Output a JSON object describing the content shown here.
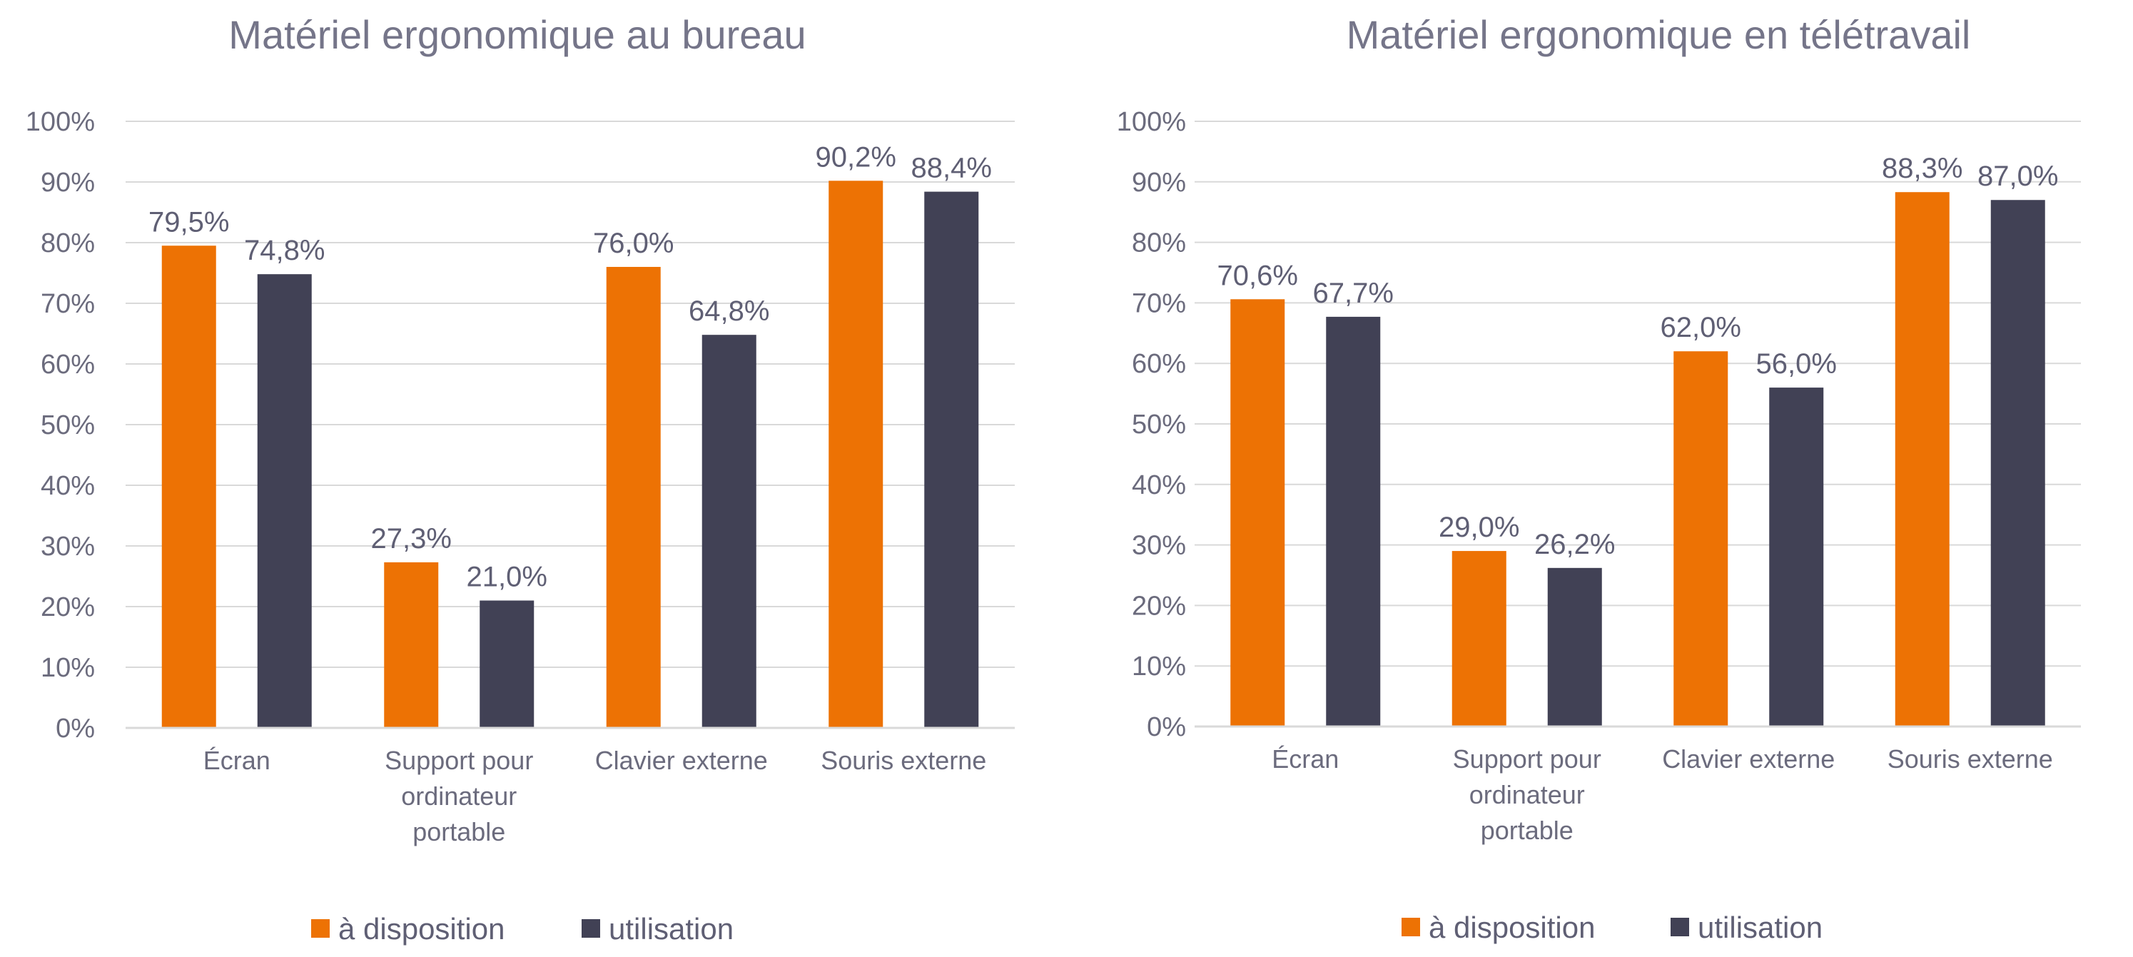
{
  "chart_data": [
    {
      "type": "bar",
      "title": "Matériel ergonomique au bureau",
      "categories": [
        [
          "Écran"
        ],
        [
          "Support pour",
          "ordinateur",
          "portable"
        ],
        [
          "Clavier externe"
        ],
        [
          "Souris externe"
        ]
      ],
      "series": [
        {
          "name": "à disposition",
          "color": "#ED7204",
          "values": [
            79.5,
            27.3,
            76.0,
            90.2
          ],
          "labels": [
            "79,5%",
            "27,3%",
            "76,0%",
            "90,2%"
          ]
        },
        {
          "name": "utilisation",
          "color": "#414155",
          "values": [
            74.8,
            21.0,
            64.8,
            88.4
          ],
          "labels": [
            "74,8%",
            "21,0%",
            "64,8%",
            "88,4%"
          ]
        }
      ],
      "yticks": [
        "0%",
        "10%",
        "20%",
        "30%",
        "40%",
        "50%",
        "60%",
        "70%",
        "80%",
        "90%",
        "100%"
      ],
      "ylim": [
        0,
        100
      ],
      "xlabel": "",
      "ylabel": "",
      "grid": true,
      "legend": "bottom"
    },
    {
      "type": "bar",
      "title": "Matériel ergonomique en télétravail",
      "categories": [
        [
          "Écran"
        ],
        [
          "Support pour",
          "ordinateur",
          "portable"
        ],
        [
          "Clavier externe"
        ],
        [
          "Souris externe"
        ]
      ],
      "series": [
        {
          "name": "à disposition",
          "color": "#ED7204",
          "values": [
            70.6,
            29.0,
            62.0,
            88.3
          ],
          "labels": [
            "70,6%",
            "29,0%",
            "62,0%",
            "88,3%"
          ]
        },
        {
          "name": "utilisation",
          "color": "#414155",
          "values": [
            67.7,
            26.2,
            56.0,
            87.0
          ],
          "labels": [
            "67,7%",
            "26,2%",
            "56,0%",
            "87,0%"
          ]
        }
      ],
      "yticks": [
        "0%",
        "10%",
        "20%",
        "30%",
        "40%",
        "50%",
        "60%",
        "70%",
        "80%",
        "90%",
        "100%"
      ],
      "ylim": [
        0,
        100
      ],
      "xlabel": "",
      "ylabel": "",
      "grid": true,
      "legend": "bottom"
    }
  ]
}
